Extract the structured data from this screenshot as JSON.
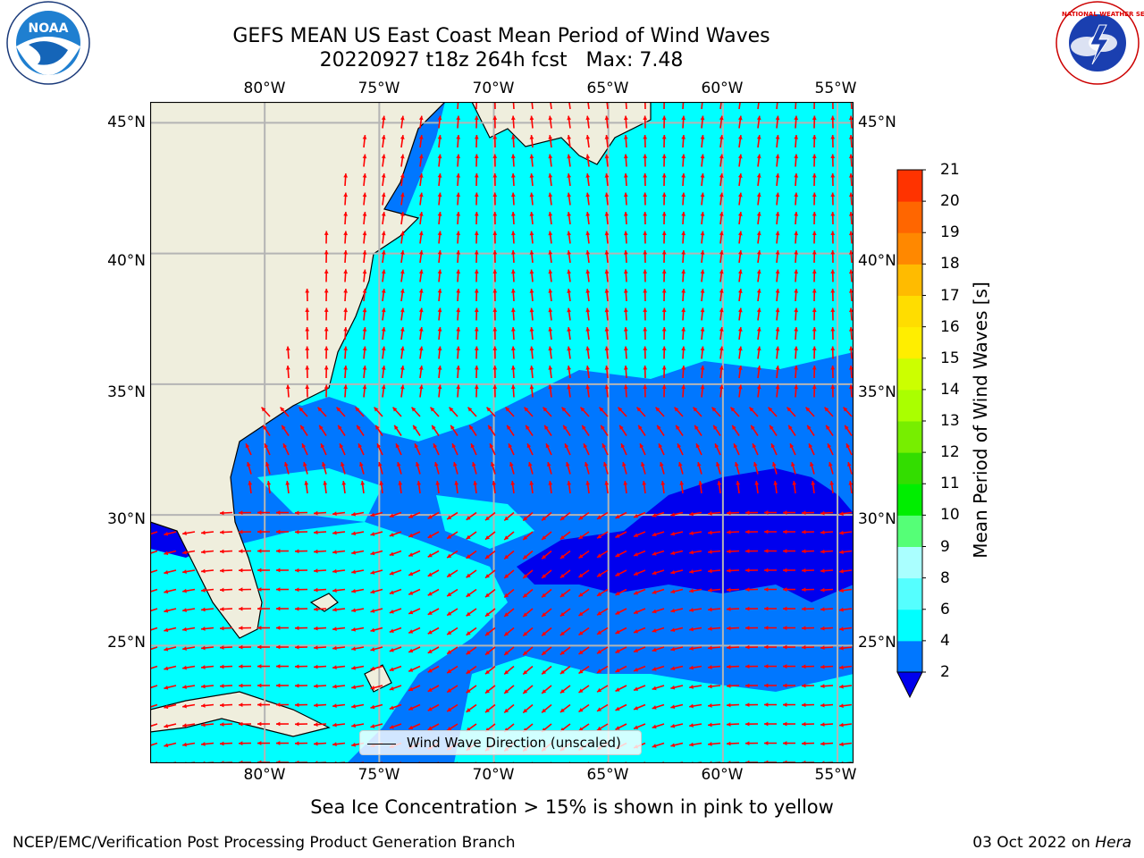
{
  "title": "GEFS MEAN US East Coast Mean Period of Wind Waves",
  "subtitle": "20220927 t18z 264h fcst   Max: 7.48",
  "logos": {
    "left": "NOAA",
    "left_ring": "NATIONAL OCEANIC AND ATMOSPHERIC ADMINISTRATION · U.S. DEPARTMENT OF COMMERCE",
    "right_ring": "NATIONAL WEATHER SERVICE"
  },
  "map": {
    "lon_labels": [
      "80°W",
      "75°W",
      "70°W",
      "65°W",
      "60°W",
      "55°W"
    ],
    "lat_labels": [
      "45°N",
      "40°N",
      "35°N",
      "30°N",
      "25°N"
    ],
    "lon_range": [
      -85,
      -54.3
    ],
    "lat_range": [
      20.5,
      45.8
    ],
    "legend": "Wind Wave Direction (unscaled)",
    "arrow_color": "#ff0000",
    "land_color": "#efeedd",
    "grid": true
  },
  "colorbar": {
    "label": "Mean Period of Wind Waves [s]",
    "ticks": [
      "2",
      "4",
      "6",
      "8",
      "9",
      "10",
      "11",
      "12",
      "13",
      "14",
      "15",
      "16",
      "17",
      "18",
      "19",
      "20",
      "21"
    ],
    "colors": [
      "#0077ff",
      "#00ffff",
      "#55ffff",
      "#aaffff",
      "#55ff77",
      "#00ee00",
      "#33dd00",
      "#77ee00",
      "#aaff00",
      "#ccff00",
      "#ffee00",
      "#ffdd00",
      "#ffbb00",
      "#ff8800",
      "#ff6600",
      "#ff3300"
    ],
    "extend_color": "#0000ee"
  },
  "note": "Sea Ice Concentration > 15% is shown in pink to yellow",
  "credit_left": "NCEP/EMC/Verification Post Processing Product Generation Branch",
  "credit_date": "03 Oct 2022 on",
  "credit_machine": "Hera"
}
